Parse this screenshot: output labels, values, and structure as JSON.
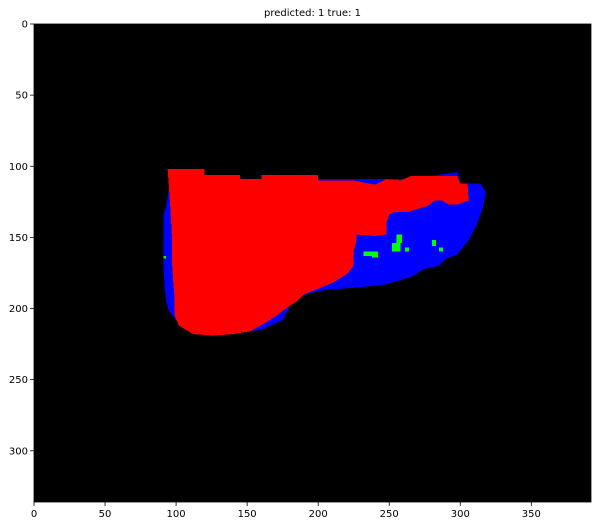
{
  "figure": {
    "title": "predicted: 1  true: 1"
  },
  "chart_data": {
    "type": "heatmap",
    "title": "predicted: 1  true: 1",
    "xlabel": "",
    "ylabel": "",
    "xlim": [
      0,
      392
    ],
    "ylim": [
      336,
      0
    ],
    "x_ticks": [
      0,
      50,
      100,
      150,
      200,
      250,
      300,
      350
    ],
    "y_ticks": [
      0,
      50,
      100,
      150,
      200,
      250,
      300
    ],
    "grid": false,
    "colors": {
      "background": "#000000",
      "class_red": "#ff0000",
      "class_blue": "#0000ff",
      "class_green": "#00ff00"
    },
    "regions": [
      {
        "name": "blue",
        "color": "#0000ff",
        "polygon": [
          [
            96,
            110
          ],
          [
            100,
            110
          ],
          [
            100,
            103
          ],
          [
            110,
            103
          ],
          [
            110,
            109
          ],
          [
            270,
            109
          ],
          [
            285,
            106
          ],
          [
            298,
            104
          ],
          [
            300,
            112
          ],
          [
            314,
            112
          ],
          [
            318,
            118
          ],
          [
            316,
            129
          ],
          [
            312,
            140
          ],
          [
            306,
            152
          ],
          [
            298,
            162
          ],
          [
            290,
            165
          ],
          [
            285,
            170
          ],
          [
            275,
            172
          ],
          [
            265,
            178
          ],
          [
            248,
            183
          ],
          [
            230,
            185
          ],
          [
            205,
            187
          ],
          [
            195,
            189
          ],
          [
            185,
            192
          ],
          [
            180,
            198
          ],
          [
            175,
            208
          ],
          [
            160,
            215
          ],
          [
            140,
            217
          ],
          [
            120,
            216
          ],
          [
            108,
            212
          ],
          [
            100,
            208
          ],
          [
            95,
            202
          ],
          [
            93,
            195
          ],
          [
            92,
            185
          ],
          [
            91,
            170
          ],
          [
            91,
            150
          ],
          [
            91,
            135
          ],
          [
            93,
            128
          ],
          [
            95,
            115
          ]
        ]
      },
      {
        "name": "red",
        "color": "#ff0000",
        "polygon": [
          [
            94,
            102
          ],
          [
            120,
            102
          ],
          [
            120,
            106
          ],
          [
            145,
            106
          ],
          [
            145,
            109
          ],
          [
            160,
            109
          ],
          [
            160,
            106
          ],
          [
            200,
            106
          ],
          [
            200,
            110
          ],
          [
            225,
            110
          ],
          [
            240,
            113
          ],
          [
            248,
            109
          ],
          [
            258,
            110
          ],
          [
            265,
            107
          ],
          [
            280,
            107
          ],
          [
            298,
            107
          ],
          [
            300,
            112
          ],
          [
            305,
            112
          ],
          [
            306,
            124
          ],
          [
            298,
            127
          ],
          [
            292,
            127
          ],
          [
            287,
            124
          ],
          [
            282,
            124
          ],
          [
            277,
            128
          ],
          [
            270,
            130
          ],
          [
            264,
            132
          ],
          [
            254,
            132
          ],
          [
            250,
            134
          ],
          [
            248,
            140
          ],
          [
            248,
            148
          ],
          [
            240,
            149
          ],
          [
            227,
            148
          ],
          [
            227,
            152
          ],
          [
            225,
            160
          ],
          [
            225,
            170
          ],
          [
            220,
            176
          ],
          [
            210,
            182
          ],
          [
            200,
            186
          ],
          [
            190,
            190
          ],
          [
            185,
            195
          ],
          [
            180,
            198
          ],
          [
            172,
            204
          ],
          [
            163,
            210
          ],
          [
            152,
            216
          ],
          [
            140,
            218
          ],
          [
            126,
            219
          ],
          [
            112,
            218
          ],
          [
            102,
            212
          ],
          [
            99,
            205
          ],
          [
            99,
            193
          ],
          [
            98,
            182
          ],
          [
            97,
            165
          ],
          [
            97,
            148
          ],
          [
            96,
            130
          ],
          [
            95,
            115
          ]
        ]
      }
    ],
    "points": [
      {
        "color": "#00ff00",
        "x": 91,
        "y": 163,
        "w": 2,
        "h": 2
      },
      {
        "color": "#00ff00",
        "x": 255,
        "y": 148,
        "w": 4,
        "h": 6
      },
      {
        "color": "#00ff00",
        "x": 252,
        "y": 154,
        "w": 6,
        "h": 6
      },
      {
        "color": "#00ff00",
        "x": 261,
        "y": 157,
        "w": 3,
        "h": 3
      },
      {
        "color": "#00ff00",
        "x": 232,
        "y": 160,
        "w": 6,
        "h": 3
      },
      {
        "color": "#00ff00",
        "x": 238,
        "y": 160,
        "w": 4,
        "h": 4
      },
      {
        "color": "#00ff00",
        "x": 280,
        "y": 152,
        "w": 3,
        "h": 4
      },
      {
        "color": "#00ff00",
        "x": 285,
        "y": 157,
        "w": 3,
        "h": 3
      }
    ]
  }
}
